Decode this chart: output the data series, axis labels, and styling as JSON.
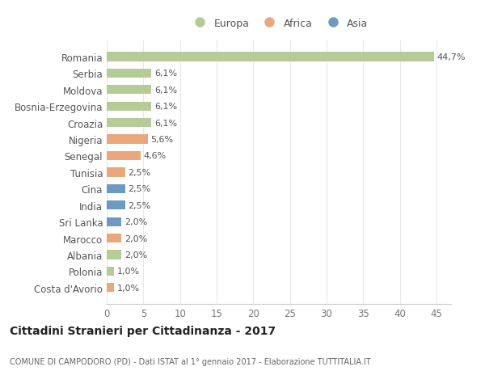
{
  "countries": [
    "Romania",
    "Serbia",
    "Moldova",
    "Bosnia-Erzegovina",
    "Croazia",
    "Nigeria",
    "Senegal",
    "Tunisia",
    "Cina",
    "India",
    "Sri Lanka",
    "Marocco",
    "Albania",
    "Polonia",
    "Costa d'Avorio"
  ],
  "values": [
    44.7,
    6.1,
    6.1,
    6.1,
    6.1,
    5.6,
    4.6,
    2.5,
    2.5,
    2.5,
    2.0,
    2.0,
    2.0,
    1.0,
    1.0
  ],
  "labels": [
    "44,7%",
    "6,1%",
    "6,1%",
    "6,1%",
    "6,1%",
    "5,6%",
    "4,6%",
    "2,5%",
    "2,5%",
    "2,5%",
    "2,0%",
    "2,0%",
    "2,0%",
    "1,0%",
    "1,0%"
  ],
  "continents": [
    "Europa",
    "Europa",
    "Europa",
    "Europa",
    "Europa",
    "Africa",
    "Africa",
    "Africa",
    "Asia",
    "Asia",
    "Asia",
    "Africa",
    "Europa",
    "Europa",
    "Africa"
  ],
  "colors": {
    "Europa": "#b5cc96",
    "Africa": "#e8a87c",
    "Asia": "#6b9bc3"
  },
  "title": "Cittadini Stranieri per Cittadinanza - 2017",
  "subtitle": "COMUNE DI CAMPODORO (PD) - Dati ISTAT al 1° gennaio 2017 - Elaborazione TUTTITALIA.IT",
  "xlim": [
    0,
    47
  ],
  "xticks": [
    0,
    5,
    10,
    15,
    20,
    25,
    30,
    35,
    40,
    45
  ],
  "background_color": "#ffffff",
  "grid_color": "#e8e8e8",
  "bar_height": 0.55
}
